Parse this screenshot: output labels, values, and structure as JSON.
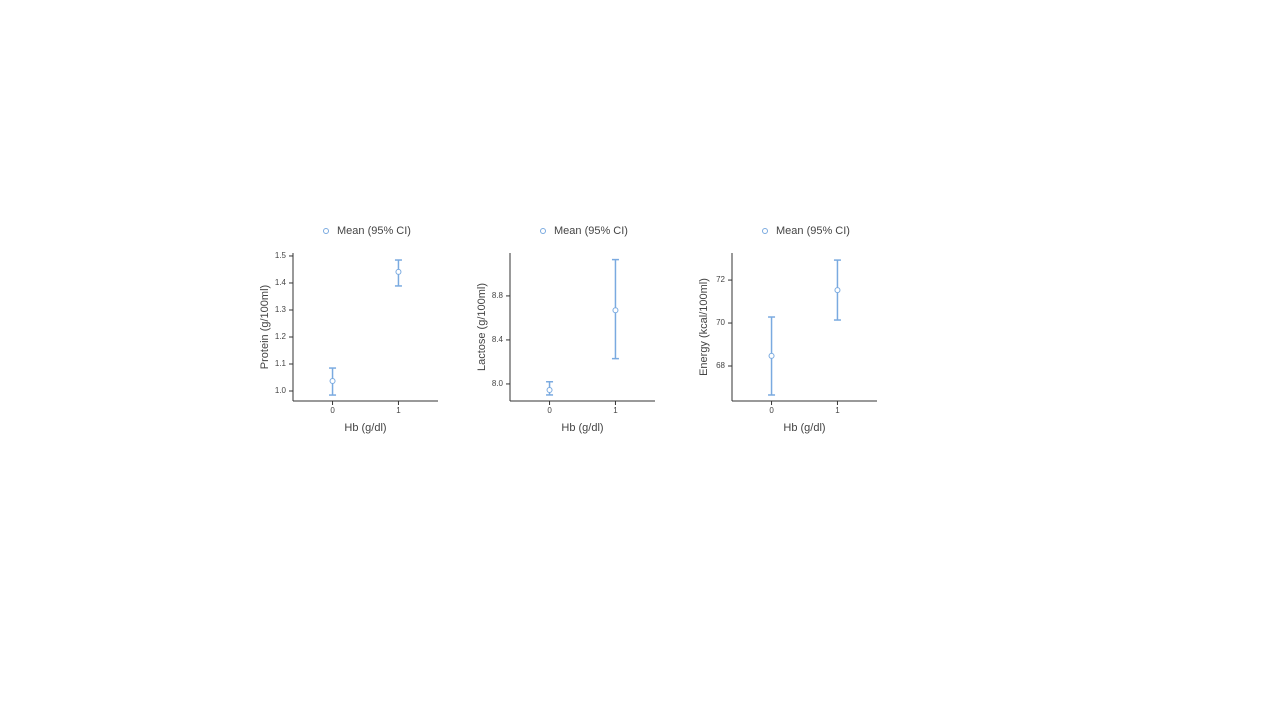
{
  "chart_data": [
    {
      "type": "errorbar",
      "categories": [
        "0",
        "1"
      ],
      "xlabel": "Hb (g/dl)",
      "ylabel": "Protein (g/100ml)",
      "series": [
        {
          "name": "Mean (95% CI)",
          "color": "#7aaae0",
          "values": [
            1.037,
            1.441
          ],
          "lower": [
            0.985,
            1.389
          ],
          "upper": [
            1.085,
            1.485
          ]
        }
      ],
      "ylim": [
        0.963,
        1.511
      ],
      "yticks": [
        {
          "value": 1,
          "label": "1.0"
        },
        1.1,
        1.2,
        1.3,
        1.4,
        1.5
      ]
    },
    {
      "type": "errorbar",
      "categories": [
        "0",
        "1"
      ],
      "xlabel": "Hb (g/dl)",
      "ylabel": "Lactose (g/100ml)",
      "series": [
        {
          "name": "Mean (95% CI)",
          "color": "#7aaae0",
          "values": [
            7.945,
            8.67
          ],
          "lower": [
            7.9,
            8.23
          ],
          "upper": [
            8.02,
            9.13
          ]
        }
      ],
      "ylim": [
        7.845,
        9.19
      ],
      "yticks": [
        {
          "value": 8,
          "label": "8.0"
        },
        8.4,
        8.8
      ]
    },
    {
      "type": "errorbar",
      "categories": [
        "0",
        "1"
      ],
      "xlabel": "Hb (g/dl)",
      "ylabel": "Energy (kcal/100ml)",
      "series": [
        {
          "name": "Mean (95% CI)",
          "color": "#7aaae0",
          "values": [
            68.47,
            71.53
          ],
          "lower": [
            66.65,
            70.14
          ],
          "upper": [
            70.28,
            72.93
          ]
        }
      ],
      "ylim": [
        66.37,
        73.26
      ],
      "yticks": [
        68,
        70,
        72
      ]
    }
  ]
}
